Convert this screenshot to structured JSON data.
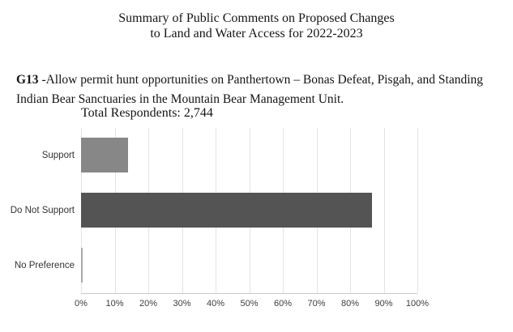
{
  "figure": {
    "title_line1": "Summary of Public Comments on Proposed Changes",
    "title_line2": "to Land and Water Access for 2022-2023",
    "question_id": "G13",
    "question_text": " -Allow permit hunt opportunities on Panthertown – Bonas Defeat, Pisgah, and Standing Indian Bear Sanctuaries in the Mountain Bear Management Unit.",
    "total_respondents_label": "Total Respondents: 2,744"
  },
  "chart_data": {
    "type": "bar",
    "orientation": "horizontal",
    "title": "Summary of Public Comments on Proposed Changes to Land and Water Access for 2022-2023",
    "subtitle": "Total Respondents: 2,744",
    "categories": [
      "Support",
      "Do Not Support",
      "No Preference"
    ],
    "values": [
      14,
      86.5,
      0.5
    ],
    "value_unit": "percent",
    "xlabel": "",
    "ylabel": "",
    "xlim": [
      0,
      100
    ],
    "x_ticks": [
      0,
      10,
      20,
      30,
      40,
      50,
      60,
      70,
      80,
      90,
      100
    ],
    "x_tick_labels": [
      "0%",
      "10%",
      "20%",
      "30%",
      "40%",
      "50%",
      "60%",
      "70%",
      "80%",
      "90%",
      "100%"
    ],
    "bar_colors": [
      "#878787",
      "#545454",
      "#a9a9a9"
    ],
    "grid": true,
    "gridline_color": "#e3e3e3",
    "axis_line_color": "#c9c9c9",
    "legend": false
  }
}
